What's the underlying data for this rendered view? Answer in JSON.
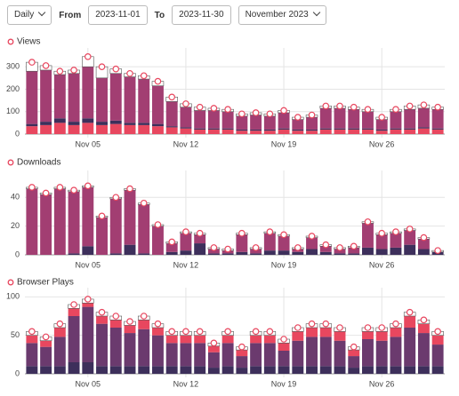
{
  "controls": {
    "interval": "Daily",
    "from_label": "From",
    "from": "2023-11-01",
    "to_label": "To",
    "to": "2023-11-30",
    "month": "November 2023"
  },
  "chart_data": [
    {
      "type": "bar",
      "stacked": true,
      "title": "Views",
      "categories": [
        null,
        null,
        null,
        null,
        "Nov 05",
        null,
        null,
        null,
        null,
        null,
        null,
        "Nov 12",
        null,
        null,
        null,
        null,
        null,
        null,
        "Nov 19",
        null,
        null,
        null,
        null,
        null,
        null,
        "Nov 26",
        null,
        null,
        null,
        null
      ],
      "series": [
        {
          "color": "#e8475f",
          "values": [
            35,
            40,
            50,
            40,
            50,
            40,
            45,
            40,
            40,
            35,
            30,
            25,
            20,
            20,
            20,
            15,
            15,
            15,
            20,
            15,
            15,
            20,
            20,
            20,
            20,
            15,
            20,
            20,
            25,
            20
          ]
        },
        {
          "color": "#3d2f5b",
          "values": [
            10,
            15,
            20,
            15,
            20,
            15,
            15,
            10,
            10,
            10,
            5,
            5,
            5,
            5,
            5,
            5,
            5,
            5,
            5,
            5,
            5,
            5,
            5,
            5,
            5,
            5,
            5,
            5,
            5,
            5
          ]
        },
        {
          "color": "#a23e72",
          "values": [
            235,
            230,
            195,
            215,
            230,
            195,
            210,
            205,
            195,
            170,
            110,
            90,
            80,
            80,
            75,
            60,
            65,
            60,
            70,
            45,
            55,
            90,
            90,
            85,
            75,
            45,
            75,
            85,
            85,
            85
          ]
        },
        {
          "color": "#ffffff",
          "values": [
            40,
            20,
            15,
            15,
            45,
            50,
            20,
            15,
            15,
            20,
            20,
            15,
            15,
            10,
            10,
            10,
            10,
            10,
            10,
            10,
            10,
            10,
            10,
            10,
            10,
            10,
            10,
            15,
            15,
            10
          ]
        }
      ],
      "ylim": [
        0,
        360
      ],
      "yticks": [
        0,
        100,
        200,
        300
      ],
      "grid": true,
      "marker_color": "#e8475f"
    },
    {
      "type": "bar",
      "stacked": true,
      "title": "Downloads",
      "categories": [
        null,
        null,
        null,
        null,
        "Nov 05",
        null,
        null,
        null,
        null,
        null,
        null,
        "Nov 12",
        null,
        null,
        null,
        null,
        null,
        null,
        "Nov 19",
        null,
        null,
        null,
        null,
        null,
        null,
        "Nov 26",
        null,
        null,
        null,
        null
      ],
      "series": [
        {
          "color": "#3d2f5b",
          "values": [
            0,
            0,
            0,
            1,
            6,
            0,
            1,
            7,
            1,
            0,
            2,
            3,
            8,
            1,
            1,
            2,
            1,
            3,
            3,
            2,
            4,
            2,
            1,
            1,
            5,
            4,
            5,
            7,
            4,
            2
          ]
        },
        {
          "color": "#a23e72",
          "values": [
            46,
            42,
            46,
            43,
            41,
            26,
            38,
            38,
            34,
            20,
            6,
            12,
            6,
            3,
            2,
            12,
            3,
            12,
            10,
            2,
            8,
            4,
            3,
            4,
            17,
            10,
            10,
            10,
            7,
            0
          ]
        },
        {
          "color": "#ffffff",
          "values": [
            1,
            1,
            1,
            1,
            1,
            1,
            1,
            1,
            1,
            1,
            1,
            1,
            1,
            1,
            1,
            1,
            1,
            1,
            1,
            1,
            1,
            1,
            1,
            1,
            1,
            1,
            1,
            1,
            1,
            1
          ]
        }
      ],
      "ylim": [
        0,
        55
      ],
      "yticks": [
        0,
        20,
        40
      ],
      "grid": true,
      "marker_color": "#e8475f"
    },
    {
      "type": "bar",
      "stacked": true,
      "title": "Browser Plays",
      "categories": [
        null,
        null,
        null,
        null,
        "Nov 05",
        null,
        null,
        null,
        null,
        null,
        null,
        "Nov 12",
        null,
        null,
        null,
        null,
        null,
        null,
        "Nov 19",
        null,
        null,
        null,
        null,
        null,
        null,
        "Nov 26",
        null,
        null,
        null,
        null
      ],
      "series": [
        {
          "color": "#3d2f5b",
          "values": [
            10,
            10,
            10,
            15,
            15,
            10,
            10,
            10,
            10,
            10,
            10,
            10,
            10,
            8,
            10,
            8,
            10,
            10,
            10,
            10,
            10,
            10,
            10,
            8,
            10,
            10,
            10,
            10,
            10,
            10
          ]
        },
        {
          "color": "#6b3a6e",
          "values": [
            30,
            25,
            38,
            60,
            72,
            55,
            50,
            43,
            48,
            40,
            30,
            30,
            30,
            20,
            30,
            15,
            30,
            30,
            20,
            33,
            38,
            38,
            33,
            15,
            35,
            33,
            38,
            50,
            43,
            28
          ]
        },
        {
          "color": "#e8475f",
          "values": [
            10,
            8,
            12,
            10,
            5,
            10,
            10,
            10,
            12,
            10,
            10,
            10,
            10,
            8,
            10,
            8,
            10,
            10,
            10,
            12,
            12,
            12,
            12,
            8,
            10,
            12,
            12,
            15,
            12,
            12
          ]
        },
        {
          "color": "#ffffff",
          "values": [
            5,
            5,
            5,
            5,
            5,
            5,
            5,
            5,
            5,
            5,
            5,
            5,
            5,
            4,
            5,
            4,
            5,
            5,
            5,
            5,
            5,
            5,
            5,
            4,
            5,
            5,
            5,
            5,
            5,
            5
          ]
        }
      ],
      "ylim": [
        0,
        105
      ],
      "yticks": [
        0,
        50,
        100
      ],
      "grid": true,
      "marker_color": "#e8475f"
    }
  ]
}
